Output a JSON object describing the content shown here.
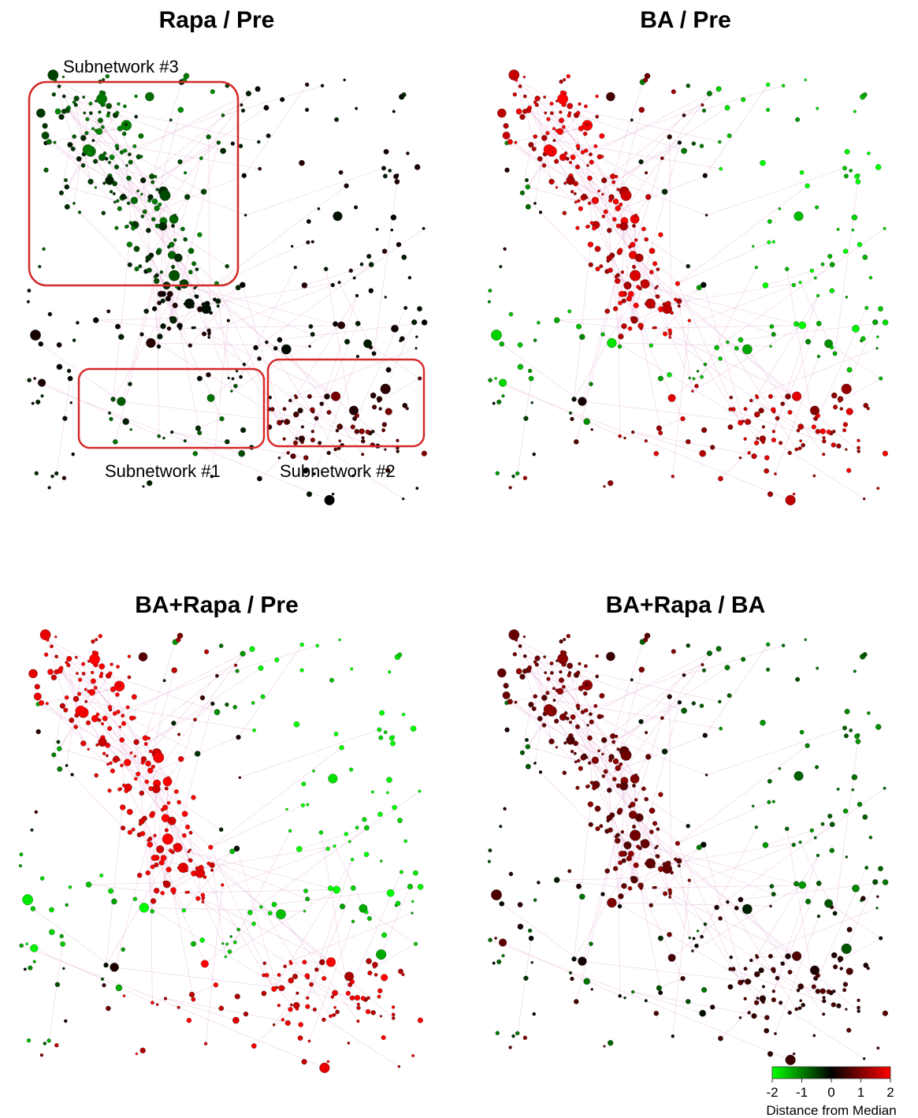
{
  "panels": [
    {
      "title": "Rapa / Pre"
    },
    {
      "title": "BA / Pre"
    },
    {
      "title": "BA+Rapa / Pre"
    },
    {
      "title": "BA+Rapa / BA"
    }
  ],
  "subnetworks": [
    "Subnetwork #3",
    "Subnetwork #1",
    "Subnetwork #2"
  ],
  "colorbar": {
    "range": [
      -2,
      2
    ],
    "ticks": [
      -2,
      -1,
      0,
      1,
      2
    ],
    "colors": [
      "#00ff00",
      "#000000",
      "#ff0000"
    ],
    "label": "Distance from Median"
  }
}
